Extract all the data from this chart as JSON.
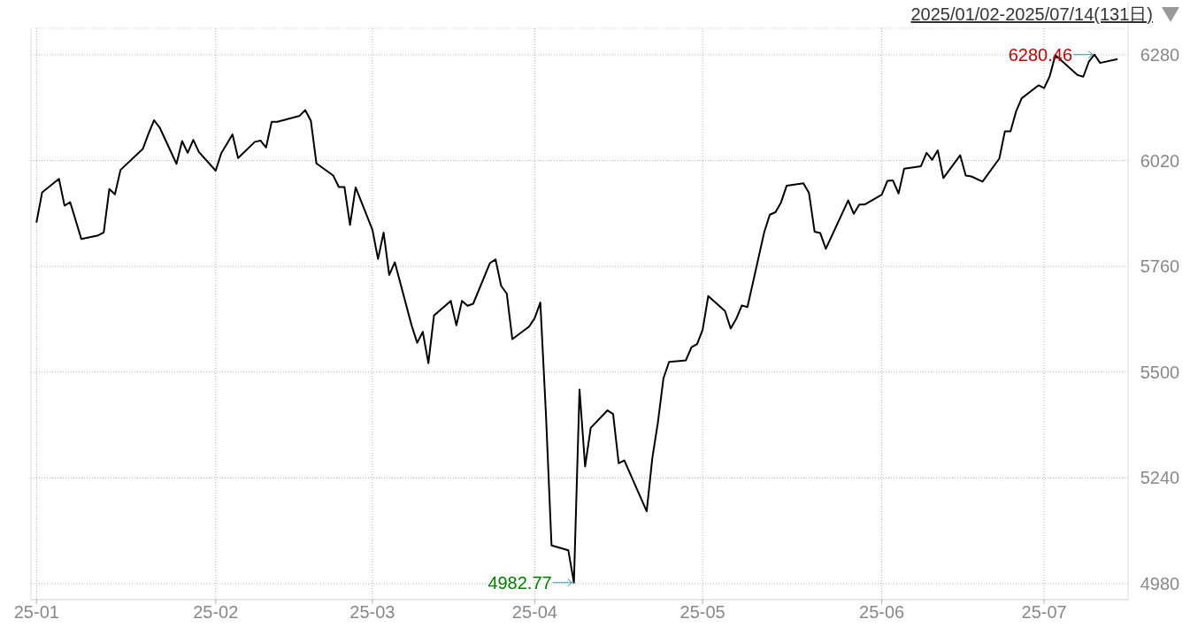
{
  "chart_data": {
    "type": "line",
    "title": "2025/01/02-2025/07/14(131日)",
    "x": [
      "2025-01-02",
      "2025-01-03",
      "2025-01-06",
      "2025-01-07",
      "2025-01-08",
      "2025-01-10",
      "2025-01-13",
      "2025-01-14",
      "2025-01-15",
      "2025-01-16",
      "2025-01-17",
      "2025-01-21",
      "2025-01-22",
      "2025-01-23",
      "2025-01-24",
      "2025-01-27",
      "2025-01-28",
      "2025-01-29",
      "2025-01-30",
      "2025-01-31",
      "2025-02-03",
      "2025-02-04",
      "2025-02-05",
      "2025-02-06",
      "2025-02-07",
      "2025-02-10",
      "2025-02-11",
      "2025-02-12",
      "2025-02-13",
      "2025-02-14",
      "2025-02-18",
      "2025-02-19",
      "2025-02-20",
      "2025-02-21",
      "2025-02-24",
      "2025-02-25",
      "2025-02-26",
      "2025-02-27",
      "2025-02-28",
      "2025-03-03",
      "2025-03-04",
      "2025-03-05",
      "2025-03-06",
      "2025-03-07",
      "2025-03-10",
      "2025-03-11",
      "2025-03-12",
      "2025-03-13",
      "2025-03-14",
      "2025-03-17",
      "2025-03-18",
      "2025-03-19",
      "2025-03-20",
      "2025-03-21",
      "2025-03-24",
      "2025-03-25",
      "2025-03-26",
      "2025-03-27",
      "2025-03-28",
      "2025-03-31",
      "2025-04-01",
      "2025-04-02",
      "2025-04-03",
      "2025-04-04",
      "2025-04-07",
      "2025-04-08",
      "2025-04-09",
      "2025-04-10",
      "2025-04-11",
      "2025-04-14",
      "2025-04-15",
      "2025-04-16",
      "2025-04-17",
      "2025-04-21",
      "2025-04-22",
      "2025-04-23",
      "2025-04-24",
      "2025-04-25",
      "2025-04-28",
      "2025-04-29",
      "2025-04-30",
      "2025-05-01",
      "2025-05-02",
      "2025-05-05",
      "2025-05-06",
      "2025-05-07",
      "2025-05-08",
      "2025-05-09",
      "2025-05-12",
      "2025-05-13",
      "2025-05-14",
      "2025-05-15",
      "2025-05-16",
      "2025-05-19",
      "2025-05-20",
      "2025-05-21",
      "2025-05-22",
      "2025-05-23",
      "2025-05-27",
      "2025-05-28",
      "2025-05-29",
      "2025-05-30",
      "2025-06-02",
      "2025-06-03",
      "2025-06-04",
      "2025-06-05",
      "2025-06-06",
      "2025-06-09",
      "2025-06-10",
      "2025-06-11",
      "2025-06-12",
      "2025-06-13",
      "2025-06-16",
      "2025-06-17",
      "2025-06-18",
      "2025-06-20",
      "2025-06-23",
      "2025-06-24",
      "2025-06-25",
      "2025-06-26",
      "2025-06-27",
      "2025-06-30",
      "2025-07-01",
      "2025-07-02",
      "2025-07-03",
      "2025-07-07",
      "2025-07-08",
      "2025-07-09",
      "2025-07-10",
      "2025-07-11",
      "2025-07-14"
    ],
    "series": [
      {
        "color": "#000000",
        "values": [
          5869,
          5942,
          5975,
          5909,
          5918,
          5827,
          5836,
          5843,
          5950,
          5937,
          5997,
          6049,
          6086,
          6119,
          6101,
          6012,
          6068,
          6039,
          6071,
          6041,
          5995,
          6038,
          6061,
          6084,
          6026,
          6066,
          6069,
          6052,
          6115,
          6115,
          6130,
          6144,
          6118,
          6013,
          5983,
          5955,
          5955,
          5862,
          5954,
          5850,
          5778,
          5843,
          5739,
          5770,
          5615,
          5572,
          5599,
          5522,
          5639,
          5675,
          5615,
          5675,
          5663,
          5668,
          5768,
          5777,
          5712,
          5693,
          5581,
          5612,
          5633,
          5671,
          5397,
          5074,
          5062,
          4982.77,
          5457,
          5268,
          5363,
          5406,
          5397,
          5276,
          5283,
          5158,
          5288,
          5376,
          5485,
          5525,
          5529,
          5561,
          5569,
          5604,
          5687,
          5650,
          5607,
          5631,
          5664,
          5660,
          5844,
          5887,
          5893,
          5917,
          5958,
          5964,
          5940,
          5845,
          5842,
          5803,
          5922,
          5889,
          5912,
          5912,
          5936,
          5970,
          5971,
          5939,
          6000,
          6006,
          6039,
          6022,
          6045,
          5977,
          6033,
          5983,
          5981,
          5968,
          6025,
          6092,
          6092,
          6141,
          6173,
          6205,
          6198,
          6227,
          6279,
          6230,
          6226,
          6263,
          6280.46,
          6260,
          6269
        ]
      }
    ],
    "xlim": [
      "2025-01-01",
      "2025-07-16"
    ],
    "ylim": [
      4941,
      6345
    ],
    "xticks": [
      {
        "value": "2025-01-02",
        "label": "25-01"
      },
      {
        "value": "2025-02-03",
        "label": "25-02"
      },
      {
        "value": "2025-03-03",
        "label": "25-03"
      },
      {
        "value": "2025-04-01",
        "label": "25-04"
      },
      {
        "value": "2025-05-01",
        "label": "25-05"
      },
      {
        "value": "2025-06-02",
        "label": "25-06"
      },
      {
        "value": "2025-07-01",
        "label": "25-07"
      }
    ],
    "yticks": [
      4980,
      5240,
      5500,
      5760,
      6020,
      6280
    ],
    "grid": true,
    "annotations": [
      {
        "text": "6280.46",
        "x": "2025-07-10",
        "y": 6280.46
      },
      {
        "text": "4982.77",
        "x": "2025-04-08",
        "y": 4982.77
      }
    ]
  }
}
